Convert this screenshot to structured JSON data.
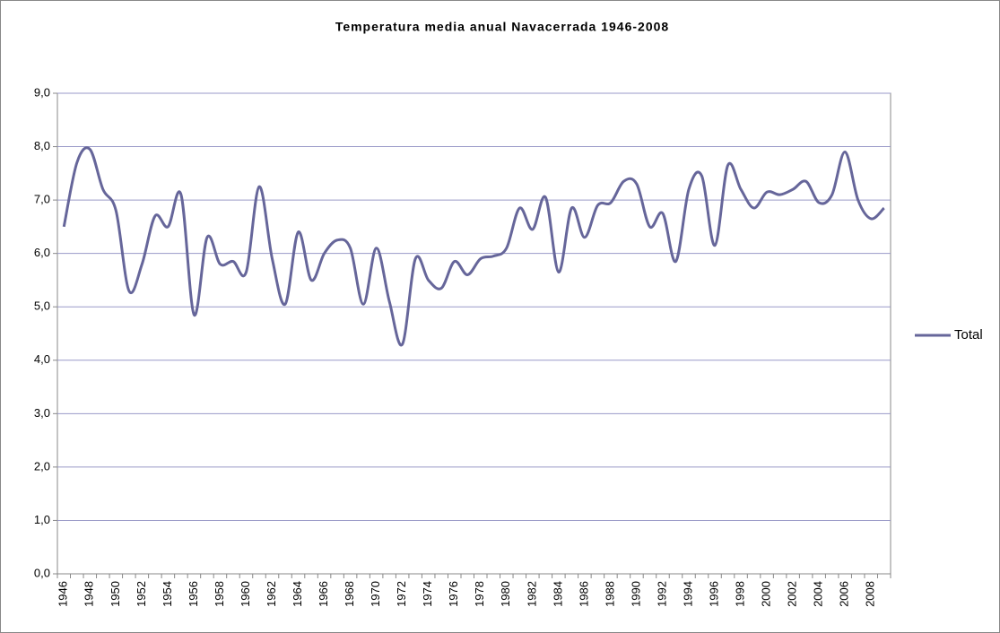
{
  "chart_data": {
    "type": "line",
    "title": "Temperatura media anual Navacerrada 1946-2008",
    "categories": [
      "1946",
      null,
      "1948",
      null,
      "1950",
      null,
      "1952",
      null,
      "1954",
      null,
      "1956",
      null,
      "1958",
      null,
      "1960",
      null,
      "1962",
      null,
      "1964",
      null,
      "1966",
      null,
      "1968",
      null,
      "1970",
      null,
      "1972",
      null,
      "1974",
      null,
      "1976",
      null,
      "1978",
      null,
      "1980",
      null,
      "1982",
      null,
      "1984",
      null,
      "1986",
      null,
      "1988",
      null,
      "1990",
      null,
      "1992",
      null,
      "1994",
      null,
      "1996",
      null,
      "1998",
      null,
      "2000",
      null,
      "2002",
      null,
      "2004",
      null,
      "2006",
      null,
      "2008",
      null
    ],
    "series": [
      {
        "name": "Total",
        "color": "#66669a",
        "values": [
          6.5,
          7.7,
          7.95,
          7.2,
          6.8,
          5.3,
          5.8,
          6.7,
          6.5,
          7.1,
          4.85,
          6.3,
          5.8,
          5.85,
          5.65,
          7.25,
          5.9,
          5.05,
          6.4,
          5.5,
          6.0,
          6.25,
          6.1,
          5.05,
          6.1,
          5.1,
          4.3,
          5.9,
          5.5,
          5.35,
          5.85,
          5.6,
          5.9,
          5.95,
          6.1,
          6.85,
          6.45,
          7.05,
          5.65,
          6.85,
          6.3,
          6.9,
          6.95,
          7.35,
          7.3,
          6.5,
          6.75,
          5.85,
          7.2,
          7.45,
          6.15,
          7.65,
          7.2,
          6.85,
          7.15,
          7.1,
          7.2,
          7.35,
          6.95,
          7.1,
          7.9,
          7.0,
          6.65,
          6.85
        ]
      }
    ],
    "ylim": [
      0,
      9
    ],
    "yticks": [
      {
        "value": 0,
        "label": "0,0"
      },
      {
        "value": 1,
        "label": "1,0"
      },
      {
        "value": 2,
        "label": "2,0"
      },
      {
        "value": 3,
        "label": "3,0"
      },
      {
        "value": 4,
        "label": "4,0"
      },
      {
        "value": 5,
        "label": "5,0"
      },
      {
        "value": 6,
        "label": "6,0"
      },
      {
        "value": 7,
        "label": "7,0"
      },
      {
        "value": 8,
        "label": "8,0"
      },
      {
        "value": 9,
        "label": "9,0"
      }
    ],
    "grid": true,
    "legend": "right"
  }
}
